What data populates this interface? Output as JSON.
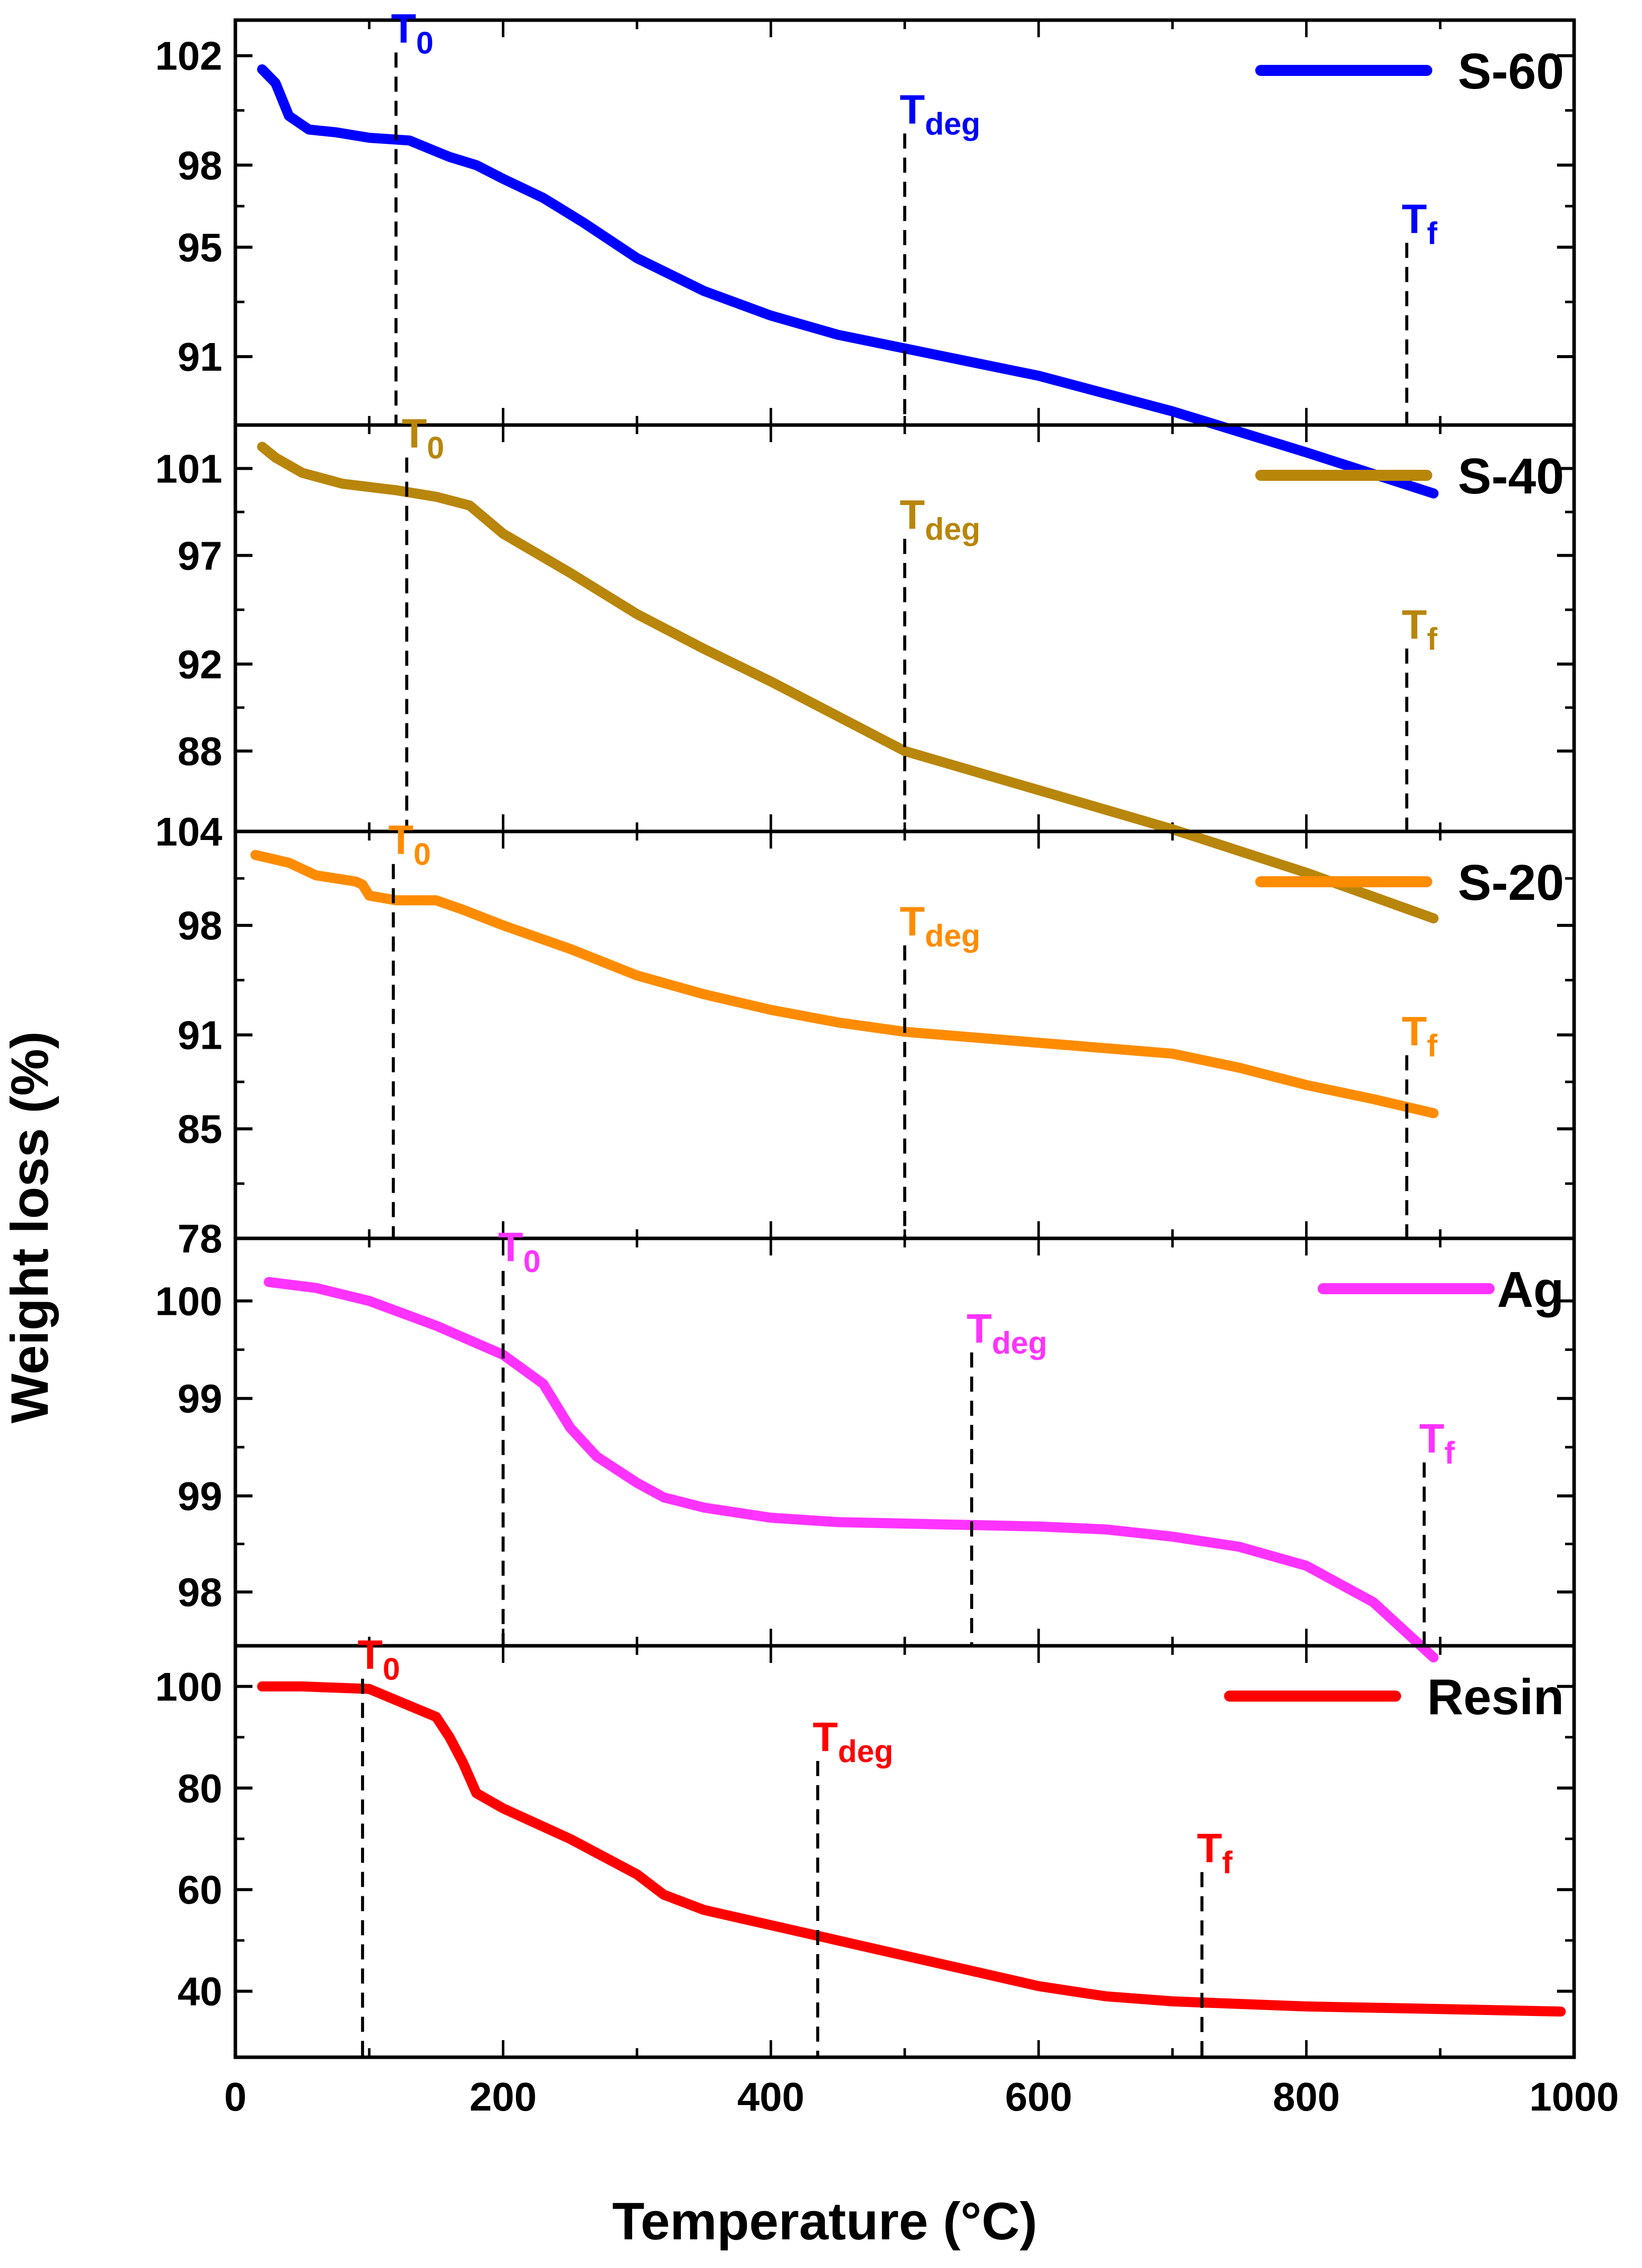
{
  "chart_data": {
    "type": "line",
    "xlabel": "Temperature (°C)",
    "ylabel": "Weight loss (%)",
    "xlim": [
      0,
      1000
    ],
    "xticks": [
      "0",
      "200",
      "400",
      "600",
      "800",
      "1000"
    ],
    "grid": false,
    "legend_placement": "top-right",
    "panels": [
      {
        "name": "S-60",
        "color": "#0000ff",
        "ylim": [
          88.5,
          103.3
        ],
        "yticks": [
          "102",
          "98",
          "95",
          "91"
        ],
        "ytick_values": [
          102,
          98,
          95,
          91
        ],
        "x": [
          20,
          30,
          40,
          55,
          75,
          100,
          130,
          150,
          160,
          180,
          200,
          230,
          260,
          300,
          350,
          400,
          450,
          500,
          600,
          700,
          800,
          895
        ],
        "y": [
          101.5,
          101.0,
          99.8,
          99.3,
          99.2,
          99.0,
          98.9,
          98.5,
          98.3,
          98.0,
          97.5,
          96.8,
          95.9,
          94.6,
          93.4,
          92.5,
          91.8,
          91.3,
          90.3,
          89.0,
          87.5,
          86.0
        ],
        "markers": [
          {
            "x": 120,
            "main": "T",
            "sub": "0"
          },
          {
            "x": 500,
            "main": "T",
            "sub": "deg"
          },
          {
            "x": 875,
            "main": "T",
            "sub": "f"
          }
        ]
      },
      {
        "name": "S-40",
        "color": "#b8860b",
        "ylim": [
          84.3,
          103.0
        ],
        "yticks": [
          "101",
          "97",
          "92",
          "88"
        ],
        "ytick_values": [
          101,
          97,
          92,
          88
        ],
        "x": [
          20,
          30,
          50,
          80,
          120,
          150,
          175,
          200,
          250,
          300,
          350,
          400,
          450,
          500,
          600,
          700,
          800,
          895
        ],
        "y": [
          102.0,
          101.5,
          100.8,
          100.3,
          100.0,
          99.7,
          99.3,
          98.0,
          96.2,
          94.3,
          92.7,
          91.2,
          89.6,
          88.0,
          86.2,
          84.4,
          82.4,
          80.3
        ],
        "markers": [
          {
            "x": 128,
            "main": "T",
            "sub": "0"
          },
          {
            "x": 500,
            "main": "T",
            "sub": "deg"
          },
          {
            "x": 875,
            "main": "T",
            "sub": "f"
          }
        ]
      },
      {
        "name": "S-20",
        "color": "#ff8c00",
        "ylim": [
          78,
          104
        ],
        "yticks": [
          "104",
          "98",
          "91",
          "85",
          "78"
        ],
        "ytick_values": [
          104,
          98,
          91,
          85,
          78
        ],
        "x": [
          15,
          40,
          60,
          90,
          95,
          100,
          120,
          150,
          170,
          200,
          250,
          300,
          350,
          400,
          450,
          500,
          600,
          700,
          750,
          800,
          850,
          895
        ],
        "y": [
          102.5,
          102.0,
          101.2,
          100.8,
          100.6,
          99.9,
          99.6,
          99.6,
          99.0,
          98.0,
          96.5,
          94.8,
          93.6,
          92.6,
          91.8,
          91.2,
          90.5,
          89.8,
          88.9,
          87.8,
          86.9,
          86.0
        ],
        "markers": [
          {
            "x": 118,
            "main": "T",
            "sub": "0"
          },
          {
            "x": 500,
            "main": "T",
            "sub": "deg"
          },
          {
            "x": 875,
            "main": "T",
            "sub": "f"
          }
        ]
      },
      {
        "name": "Ag",
        "color": "#ff33ff",
        "ylim": [
          97.8,
          100.6
        ],
        "yticks": [
          "100",
          "99",
          "99",
          "98"
        ],
        "ytick_values": [
          100.17,
          99.5,
          98.83,
          98.17
        ],
        "x": [
          25,
          60,
          100,
          150,
          200,
          230,
          250,
          270,
          300,
          320,
          350,
          400,
          450,
          500,
          550,
          600,
          650,
          700,
          750,
          800,
          850,
          895
        ],
        "y": [
          100.3,
          100.26,
          100.17,
          100.0,
          99.8,
          99.6,
          99.3,
          99.1,
          98.92,
          98.82,
          98.75,
          98.68,
          98.65,
          98.64,
          98.63,
          98.62,
          98.6,
          98.55,
          98.48,
          98.35,
          98.1,
          97.72
        ],
        "markers": [
          {
            "x": 200,
            "main": "T",
            "sub": "0"
          },
          {
            "x": 550,
            "main": "T",
            "sub": "deg"
          },
          {
            "x": 888,
            "main": "T",
            "sub": "f"
          }
        ]
      },
      {
        "name": "Resin",
        "color": "#ff0000",
        "ylim": [
          27,
          108
        ],
        "yticks": [
          "100",
          "80",
          "60",
          "40"
        ],
        "ytick_values": [
          100,
          80,
          60,
          40
        ],
        "x": [
          20,
          50,
          100,
          150,
          160,
          170,
          180,
          200,
          250,
          300,
          320,
          350,
          400,
          450,
          500,
          550,
          600,
          650,
          700,
          750,
          800,
          900,
          990
        ],
        "y": [
          100,
          100,
          99.5,
          94,
          90,
          85,
          79,
          76,
          70,
          63,
          59,
          56,
          53,
          50,
          47,
          44,
          41,
          39,
          38,
          37.5,
          37,
          36.5,
          36
        ],
        "markers": [
          {
            "x": 95,
            "main": "T",
            "sub": "0"
          },
          {
            "x": 435,
            "main": "T",
            "sub": "deg"
          },
          {
            "x": 722,
            "main": "T",
            "sub": "f"
          }
        ]
      }
    ]
  }
}
